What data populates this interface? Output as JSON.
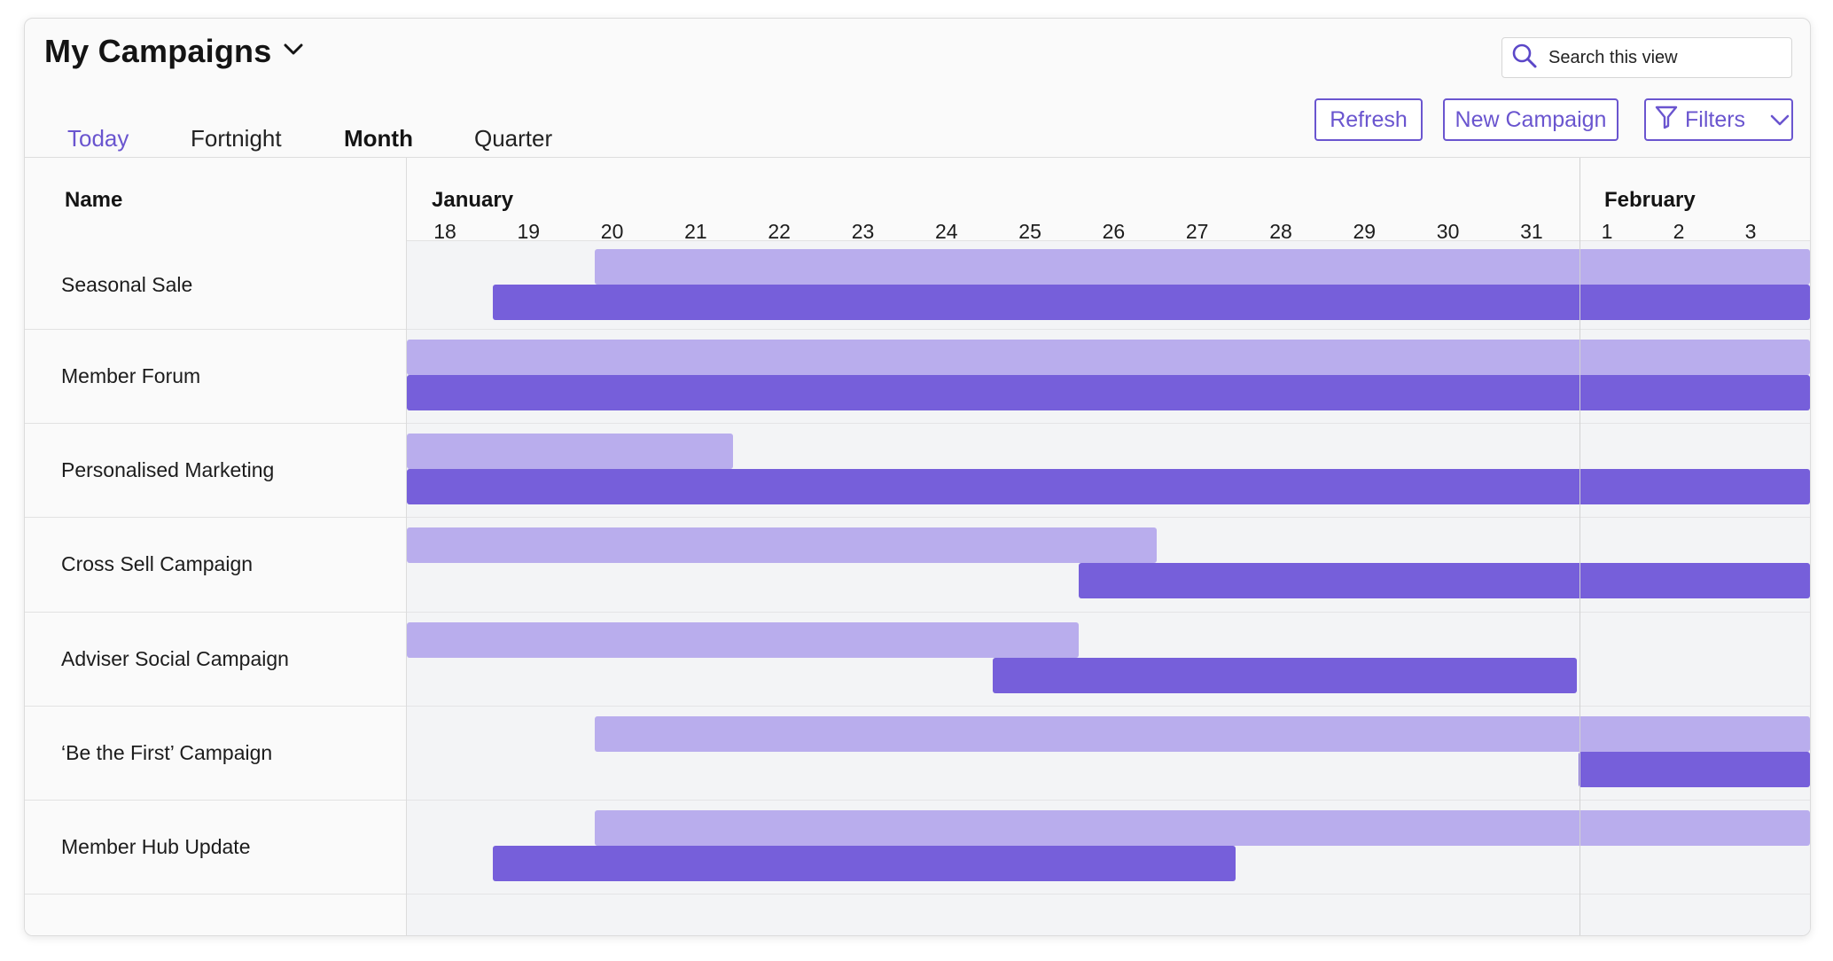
{
  "header": {
    "title": "My Campaigns",
    "search_placeholder": "Search this view"
  },
  "tabs": [
    {
      "label": "Today"
    },
    {
      "label": "Fortnight"
    },
    {
      "label": "Month"
    },
    {
      "label": "Quarter"
    }
  ],
  "active_tab": "Month",
  "toolbar": {
    "refresh_label": "Refresh",
    "new_campaign_label": "New Campaign",
    "filters_label": "Filters"
  },
  "grid": {
    "name_header": "Name",
    "months": [
      {
        "label": "January",
        "first_day_index": 0
      },
      {
        "label": "February",
        "first_day_index": 14
      }
    ],
    "days": [
      "18",
      "19",
      "20",
      "21",
      "22",
      "23",
      "24",
      "25",
      "26",
      "27",
      "28",
      "29",
      "30",
      "31",
      "1",
      "2",
      "3"
    ],
    "rows": [
      {
        "name": "Seasonal Sale",
        "planned": {
          "start": "2025-01-20",
          "end": "2025-02-03+",
          "continues_past_view": true
        },
        "actual": {
          "start": "2025-01-19",
          "end": "2025-02-03+",
          "continues_past_view": true
        }
      },
      {
        "name": "Member Forum",
        "planned": {
          "start": "2025-01-18-",
          "end": "2025-02-03+",
          "continues_past_view": true
        },
        "actual": {
          "start": "2025-01-18-",
          "end": "2025-02-03+",
          "continues_past_view": true
        }
      },
      {
        "name": "Personalised Marketing",
        "planned": {
          "start": "2025-01-18-",
          "end": "2025-01-21"
        },
        "actual": {
          "start": "2025-01-18-",
          "end": "2025-02-03+",
          "continues_past_view": true
        }
      },
      {
        "name": "Cross Sell Campaign",
        "planned": {
          "start": "2025-01-18-",
          "end": "2025-01-26"
        },
        "actual": {
          "start": "2025-01-26",
          "end": "2025-02-03+",
          "continues_past_view": true
        }
      },
      {
        "name": "Adviser Social Campaign",
        "planned": {
          "start": "2025-01-18-",
          "end": "2025-01-25"
        },
        "actual": {
          "start": "2025-01-25",
          "end": "2025-01-31"
        }
      },
      {
        "name": "‘Be the First’ Campaign",
        "planned": {
          "start": "2025-01-20",
          "end": "2025-02-03+",
          "continues_past_view": true
        },
        "actual": {
          "start": "2025-02-01",
          "end": "2025-02-03+",
          "continues_past_view": true
        }
      },
      {
        "name": "Member Hub Update",
        "planned": {
          "start": "2025-01-20",
          "end": "2025-02-03+",
          "continues_past_view": true
        },
        "actual": {
          "start": "2025-01-19",
          "end": "2025-01-27"
        }
      }
    ]
  },
  "colors": {
    "accent": "#6a55cf",
    "planned_bar": "#b9aded",
    "actual_bar": "#765fda",
    "timeline_bg": "#f3f4f6"
  }
}
